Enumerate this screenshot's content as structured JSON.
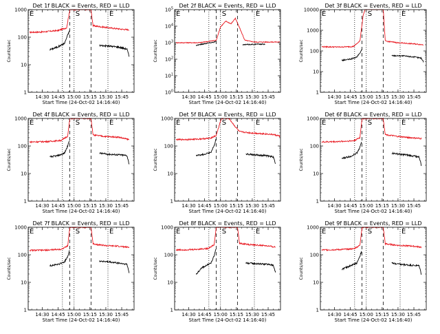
{
  "chart_data": {
    "type": "line",
    "y_scale": "log",
    "x_ticks": [
      "14:30",
      "14:45",
      "15:00",
      "15:15",
      "15:30",
      "15:45"
    ],
    "x_tick_minutes": [
      0,
      15,
      30,
      45,
      60,
      75
    ],
    "x_start_minute": -13.33,
    "x_end_minute": 86.67,
    "xlabel": "Start Time (24-Oct-02 14:16:40)",
    "ylabel": "Counts/sec",
    "vertical_markers": [
      {
        "label": "E",
        "minute": -13.33,
        "style": "dotted"
      },
      {
        "label": "",
        "minute": 19,
        "style": "dotted"
      },
      {
        "label": "",
        "minute": 26,
        "style": "dashed"
      },
      {
        "label": "S",
        "minute": 30,
        "style": "dotted"
      },
      {
        "label": "",
        "minute": 46,
        "style": "dashed"
      },
      {
        "label": "E",
        "minute": 62,
        "style": "dotted"
      }
    ],
    "series_colors": {
      "events": "#000000",
      "lld": "#e8141c"
    },
    "panels": [
      {
        "title": "Det 1f BLACK = Events, RED = LLD",
        "ylim": [
          1,
          1000
        ],
        "yticks": [
          "1",
          "10",
          "100",
          "1000"
        ],
        "lld": [
          [
            -12,
            150
          ],
          [
            0,
            155
          ],
          [
            15,
            175
          ],
          [
            23,
            220
          ],
          [
            26,
            1000
          ],
          [
            46,
            1000
          ],
          [
            48,
            260
          ],
          [
            55,
            240
          ],
          [
            65,
            215
          ],
          [
            75,
            195
          ],
          [
            82,
            185
          ]
        ],
        "events": [
          [
            7,
            35
          ],
          [
            15,
            45
          ],
          [
            21,
            60
          ],
          [
            24,
            120
          ],
          [
            25.6,
            170
          ],
          null,
          [
            54,
            50
          ],
          [
            62,
            48
          ],
          [
            72,
            44
          ],
          [
            80,
            37
          ],
          [
            82,
            20
          ]
        ]
      },
      {
        "title": "Det 2f BLACK = Events, RED = LLD",
        "ylim": [
          1,
          100000
        ],
        "yticks": [
          "10^0",
          "10^1",
          "10^2",
          "10^3",
          "10^4",
          "10^5"
        ],
        "lld": [
          [
            -12,
            1000
          ],
          [
            10,
            1000
          ],
          [
            26,
            1400
          ],
          [
            30,
            9000
          ],
          [
            35,
            20000
          ],
          [
            40,
            14000
          ],
          [
            44,
            30000
          ],
          [
            48,
            8000
          ],
          [
            53,
            1400
          ],
          [
            62,
            1100
          ],
          [
            86,
            1100
          ]
        ],
        "events": [
          [
            7,
            700
          ],
          [
            16,
            900
          ],
          [
            24,
            1100
          ],
          [
            25.6,
            1200
          ],
          null,
          [
            51,
            750
          ],
          [
            66,
            820
          ],
          [
            72,
            800
          ]
        ]
      },
      {
        "title": "Det 3f BLACK = Events, RED = LLD",
        "ylim": [
          1,
          10000
        ],
        "yticks": [
          "1",
          "10",
          "100",
          "1000",
          "10000"
        ],
        "lld": [
          [
            -12,
            160
          ],
          [
            5,
            155
          ],
          [
            18,
            165
          ],
          [
            24,
            300
          ],
          [
            27,
            5000
          ],
          [
            29,
            11000
          ],
          [
            46,
            11000
          ],
          [
            48,
            300
          ],
          [
            60,
            250
          ],
          [
            75,
            220
          ],
          [
            84,
            200
          ]
        ],
        "events": [
          [
            7,
            35
          ],
          [
            15,
            40
          ],
          [
            21,
            50
          ],
          [
            24,
            80
          ],
          [
            25.6,
            110
          ],
          null,
          [
            54,
            60
          ],
          [
            64,
            58
          ],
          [
            74,
            52
          ],
          [
            82,
            45
          ],
          [
            84,
            30
          ]
        ]
      },
      {
        "title": "Det 4f BLACK = Events, RED = LLD",
        "ylim": [
          1,
          1000
        ],
        "yticks": [
          "1",
          "10",
          "100",
          "1000"
        ],
        "lld": [
          [
            -12,
            140
          ],
          [
            5,
            145
          ],
          [
            18,
            160
          ],
          [
            24,
            230
          ],
          [
            26,
            1000
          ],
          [
            46,
            1000
          ],
          [
            48,
            250
          ],
          [
            60,
            220
          ],
          [
            72,
            210
          ],
          [
            82,
            170
          ]
        ],
        "events": [
          [
            7,
            40
          ],
          [
            15,
            45
          ],
          [
            21,
            55
          ],
          [
            24,
            100
          ],
          [
            25.6,
            160
          ],
          null,
          [
            54,
            55
          ],
          [
            62,
            50
          ],
          [
            72,
            48
          ],
          [
            80,
            45
          ],
          [
            82,
            22
          ]
        ]
      },
      {
        "title": "Det 5f BLACK = Events, RED = LLD",
        "ylim": [
          1,
          1000
        ],
        "yticks": [
          "1",
          "10",
          "100",
          "1000"
        ],
        "lld": [
          [
            -12,
            170
          ],
          [
            5,
            175
          ],
          [
            20,
            190
          ],
          [
            26,
            240
          ],
          [
            29,
            600
          ],
          [
            31,
            1000
          ],
          [
            38,
            1000
          ],
          [
            44,
            500
          ],
          [
            48,
            330
          ],
          [
            58,
            300
          ],
          [
            70,
            280
          ],
          [
            80,
            260
          ],
          [
            86,
            230
          ]
        ],
        "events": [
          [
            7,
            45
          ],
          [
            15,
            50
          ],
          [
            21,
            60
          ],
          [
            24,
            100
          ],
          [
            25.6,
            180
          ],
          null,
          [
            54,
            52
          ],
          [
            62,
            48
          ],
          [
            72,
            45
          ],
          [
            80,
            40
          ],
          [
            82,
            22
          ]
        ]
      },
      {
        "title": "Det 6f BLACK = Events, RED = LLD",
        "ylim": [
          1,
          1000
        ],
        "yticks": [
          "1",
          "10",
          "100",
          "1000"
        ],
        "lld": [
          [
            -12,
            140
          ],
          [
            5,
            145
          ],
          [
            18,
            155
          ],
          [
            24,
            200
          ],
          [
            26,
            1000
          ],
          [
            46,
            1000
          ],
          [
            48,
            260
          ],
          [
            60,
            220
          ],
          [
            72,
            200
          ],
          [
            82,
            185
          ]
        ],
        "events": [
          [
            7,
            35
          ],
          [
            15,
            42
          ],
          [
            21,
            55
          ],
          [
            24,
            90
          ],
          [
            25.6,
            140
          ],
          null,
          [
            54,
            55
          ],
          [
            62,
            50
          ],
          [
            72,
            45
          ],
          [
            80,
            40
          ],
          [
            82,
            20
          ]
        ]
      },
      {
        "title": "Det 7f BLACK = Events, RED = LLD",
        "ylim": [
          1,
          1000
        ],
        "yticks": [
          "1",
          "10",
          "100",
          "1000"
        ],
        "lld": [
          [
            -12,
            145
          ],
          [
            5,
            148
          ],
          [
            18,
            160
          ],
          [
            24,
            210
          ],
          [
            26,
            1000
          ],
          [
            46,
            1000
          ],
          [
            48,
            250
          ],
          [
            60,
            215
          ],
          [
            72,
            205
          ],
          [
            82,
            185
          ]
        ],
        "events": [
          [
            7,
            40
          ],
          [
            15,
            45
          ],
          [
            21,
            55
          ],
          [
            24,
            90
          ],
          [
            25.6,
            140
          ],
          null,
          [
            54,
            60
          ],
          [
            62,
            55
          ],
          [
            72,
            50
          ],
          [
            80,
            45
          ],
          [
            82,
            22
          ]
        ]
      },
      {
        "title": "Det 8f BLACK = Events, RED = LLD",
        "ylim": [
          1,
          1000
        ],
        "yticks": [
          "1",
          "10",
          "100",
          "1000"
        ],
        "lld": [
          [
            -12,
            150
          ],
          [
            5,
            155
          ],
          [
            18,
            170
          ],
          [
            24,
            230
          ],
          [
            26,
            1000
          ],
          [
            46,
            1000
          ],
          [
            48,
            260
          ],
          [
            60,
            230
          ],
          [
            72,
            215
          ],
          [
            82,
            190
          ]
        ],
        "events": [
          [
            7,
            20
          ],
          [
            13,
            35
          ],
          [
            21,
            50
          ],
          [
            24,
            90
          ],
          [
            25.6,
            170
          ],
          null,
          [
            54,
            50
          ],
          [
            62,
            48
          ],
          [
            72,
            46
          ],
          [
            80,
            42
          ],
          [
            82,
            22
          ]
        ]
      },
      {
        "title": "Det 9f BLACK = Events, RED = LLD",
        "ylim": [
          1,
          1000
        ],
        "yticks": [
          "1",
          "10",
          "100",
          "1000"
        ],
        "lld": [
          [
            -12,
            150
          ],
          [
            5,
            155
          ],
          [
            18,
            165
          ],
          [
            24,
            220
          ],
          [
            26,
            1000
          ],
          [
            46,
            1000
          ],
          [
            48,
            250
          ],
          [
            60,
            220
          ],
          [
            72,
            210
          ],
          [
            82,
            190
          ]
        ],
        "events": [
          [
            7,
            30
          ],
          [
            15,
            40
          ],
          [
            21,
            50
          ],
          [
            24,
            90
          ],
          [
            25.6,
            140
          ],
          null,
          [
            54,
            50
          ],
          [
            62,
            45
          ],
          [
            72,
            42
          ],
          [
            80,
            40
          ],
          [
            82,
            20
          ]
        ]
      }
    ]
  }
}
